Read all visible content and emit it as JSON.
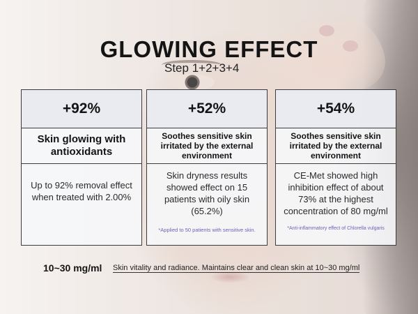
{
  "title": "GLOWING EFFECT",
  "subtitle": "Step 1+2+3+4",
  "cards": [
    {
      "stat": "+92%",
      "heading": "Skin glowing with antioxidants",
      "body": "Up to 92% removal effect when treated with 2.00%",
      "note": ""
    },
    {
      "stat": "+52%",
      "heading": "Soothes sensitive skin irritated by the external environment",
      "body": "Skin dryness results showed effect on 15 patients with oily skin (65.2%)",
      "note": "*Applied to 50 patients with sensitive skin."
    },
    {
      "stat": "+54%",
      "heading": "Soothes sensitive skin irritated by the external environment",
      "body": "CE-Met showed high inhibition effect of about 73% at the highest concentration of 80 mg/ml",
      "note": "*Anti-inflammatory effect of Chlorella vulgaris"
    }
  ],
  "footer": {
    "concentration": "10~30 mg/ml",
    "description": "Skin vitality and radiance. Maintains clear and clean skin at 10~30 mg/ml"
  }
}
